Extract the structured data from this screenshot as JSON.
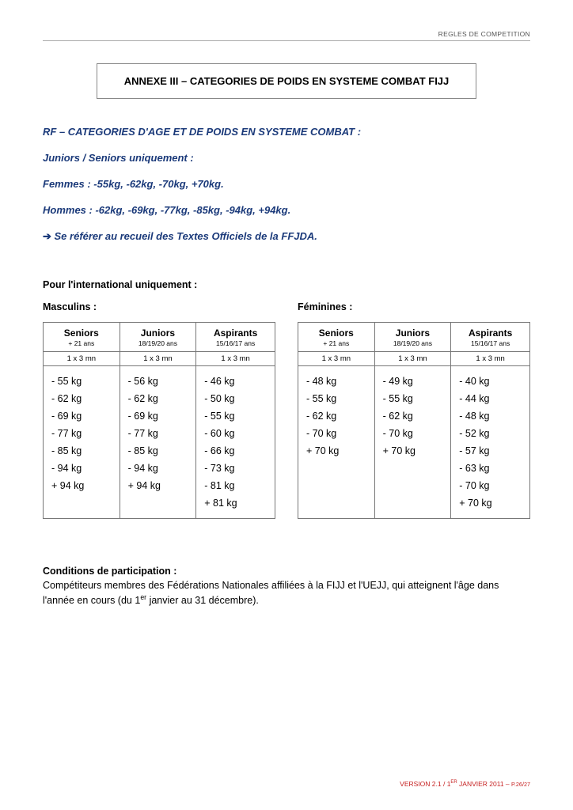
{
  "header": {
    "right": "REGLES DE COMPETITION"
  },
  "title": "ANNEXE III – CATEGORIES DE POIDS EN SYSTEME COMBAT FIJJ",
  "rf": {
    "heading": "RF – CATEGORIES D'AGE ET DE POIDS EN SYSTEME COMBAT :",
    "lines": [
      "Juniors / Seniors uniquement :",
      "Femmes : -55kg, -62kg, -70kg, +70kg.",
      "Hommes : -62kg, -69kg, -77kg, -85kg, -94kg, +94kg."
    ],
    "note": "Se référer au recueil des Textes Officiels de la FFJDA."
  },
  "intl_heading": "Pour l'international uniquement :",
  "tables": {
    "male": {
      "title": "Masculins :",
      "cols": [
        {
          "head": "Seniors",
          "sub": "+ 21 ans",
          "dur": "1 x 3 mn"
        },
        {
          "head": "Juniors",
          "sub": "18/19/20 ans",
          "dur": "1 x 3 mn"
        },
        {
          "head": "Aspirants",
          "sub": "15/16/17 ans",
          "dur": "1 x 3 mn"
        }
      ],
      "weights": [
        [
          "- 55 kg",
          "- 62 kg",
          "- 69 kg",
          "- 77 kg",
          "- 85 kg",
          "- 94 kg",
          "+ 94 kg"
        ],
        [
          "- 56 kg",
          "- 62 kg",
          "- 69 kg",
          "- 77 kg",
          "- 85 kg",
          "- 94 kg",
          "+ 94 kg"
        ],
        [
          "- 46 kg",
          "- 50 kg",
          "- 55 kg",
          "- 60 kg",
          "- 66 kg",
          "- 73 kg",
          "- 81 kg",
          "+ 81 kg"
        ]
      ]
    },
    "female": {
      "title": "Féminines :",
      "cols": [
        {
          "head": "Seniors",
          "sub": "+ 21 ans",
          "dur": "1 x 3 mn"
        },
        {
          "head": "Juniors",
          "sub": "18/19/20 ans",
          "dur": "1 x 3 mn"
        },
        {
          "head": "Aspirants",
          "sub": "15/16/17 ans",
          "dur": "1 x 3 mn"
        }
      ],
      "weights": [
        [
          "- 48 kg",
          "- 55 kg",
          "- 62 kg",
          "- 70 kg",
          "+ 70 kg"
        ],
        [
          "- 49 kg",
          "- 55 kg",
          "- 62 kg",
          "- 70 kg",
          "+ 70 kg"
        ],
        [
          "- 40 kg",
          "- 44 kg",
          "- 48 kg",
          "- 52 kg",
          "- 57 kg",
          "- 63 kg",
          "- 70 kg",
          "+ 70 kg"
        ]
      ]
    }
  },
  "conditions": {
    "heading": "Conditions de participation :",
    "body_pre": "Compétiteurs membres des Fédérations Nationales affiliées à la FIJJ et l'UEJJ, qui atteignent l'âge dans l'année en cours (du 1",
    "body_sup": "er",
    "body_post": " janvier au 31 décembre)."
  },
  "footer": {
    "text_a": "VERSION 2.1 / 1",
    "sup": "ER",
    "text_b": " JANVIER 2011 – ",
    "page_label": "P.26/27"
  },
  "colors": {
    "blue": "#1b3a7a",
    "red": "#c62121",
    "border": "#777777"
  }
}
